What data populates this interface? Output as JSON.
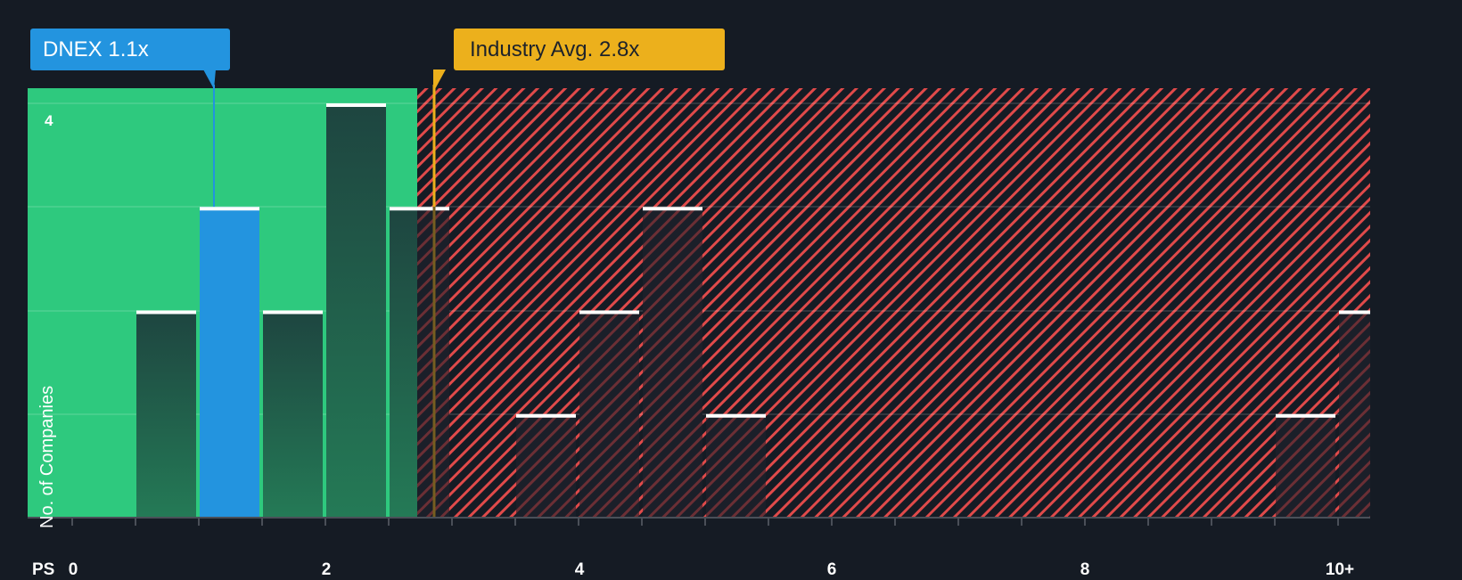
{
  "chart_data": {
    "type": "bar",
    "title": "",
    "xlabel": "PS",
    "ylabel": "No. of Companies",
    "x_ticks": [
      "0",
      "2",
      "4",
      "6",
      "8",
      "10+"
    ],
    "y_ticks": [
      "4"
    ],
    "ylim": [
      0,
      4
    ],
    "xlim": [
      0,
      10.25
    ],
    "bin_width": 0.5,
    "bins": [
      {
        "range": "0.5-1.0",
        "x_start": 0.5,
        "value": 2
      },
      {
        "range": "1.0-1.5",
        "x_start": 1.0,
        "value": 3,
        "highlight": true
      },
      {
        "range": "1.5-2.0",
        "x_start": 1.5,
        "value": 2
      },
      {
        "range": "2.0-2.5",
        "x_start": 2.0,
        "value": 4
      },
      {
        "range": "2.5-3.0",
        "x_start": 2.5,
        "value": 3
      },
      {
        "range": "3.5-4.0",
        "x_start": 3.5,
        "value": 1
      },
      {
        "range": "4.0-4.5",
        "x_start": 4.0,
        "value": 2
      },
      {
        "range": "4.5-5.0",
        "x_start": 4.5,
        "value": 3
      },
      {
        "range": "5.0-5.5",
        "x_start": 5.0,
        "value": 1
      },
      {
        "range": "9.5-10.0",
        "x_start": 9.5,
        "value": 1
      },
      {
        "range": "10+",
        "x_start": 10.0,
        "value": 2
      }
    ],
    "markers": [
      {
        "name": "DNEX",
        "value": 1.1,
        "label": "DNEX 1.1x",
        "color": "#2394df"
      },
      {
        "name": "Industry Avg.",
        "value": 2.8,
        "label": "Industry Avg. 2.8x",
        "color": "#ecb01c"
      }
    ],
    "regions": [
      {
        "name": "below-average",
        "from": 0,
        "to": 2.74,
        "color": "#2ec97e"
      },
      {
        "name": "above-average",
        "from": 2.74,
        "to": 10.25,
        "color": "#e04a4a",
        "pattern": "diagonal-hatch"
      }
    ],
    "grid": true,
    "legend": "none"
  },
  "labels": {
    "company_tag": "DNEX 1.1x",
    "industry_tag": "Industry Avg. 2.8x",
    "y_axis_title": "No. of Companies",
    "y_tick_top": "4",
    "x_axis_name": "PS",
    "x_ticks": [
      "0",
      "2",
      "4",
      "6",
      "8",
      "10+"
    ]
  },
  "colors": {
    "background": "#151b24",
    "green_zone": "#2ec97e",
    "hatch_red": "#e04a4a",
    "company_bar": "#2394df",
    "industry_line": "#ecb01c",
    "bar_dark": "#1f4a3e",
    "bar_top": "#ffffff"
  }
}
